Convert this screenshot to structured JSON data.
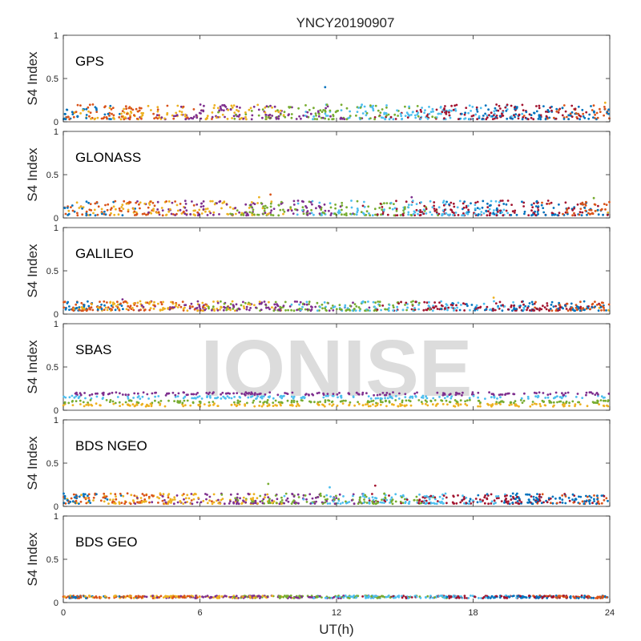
{
  "chart_data": {
    "type": "scatter",
    "title": "YNCY20190907",
    "xlabel": "UT(h)",
    "ylabel": "S4 Index",
    "xlim": [
      0,
      24
    ],
    "ylim": [
      0,
      1
    ],
    "x_ticks": [
      "0",
      "6",
      "12",
      "18",
      "24"
    ],
    "y_ticks": [
      "0",
      "0.5",
      "1"
    ],
    "grid": false,
    "watermark": "IONISE",
    "series_colors": [
      "#0072bd",
      "#d95319",
      "#edb120",
      "#7e2f8e",
      "#77ac30",
      "#4dbeee",
      "#a2142f"
    ],
    "panels": [
      {
        "label": "GPS",
        "approx_band": [
          0.03,
          0.2
        ],
        "outliers": [
          {
            "x": 11.5,
            "y": 0.4
          },
          {
            "x": 1.3,
            "y": 0.2
          },
          {
            "x": 23.8,
            "y": 0.22
          }
        ]
      },
      {
        "label": "GLONASS",
        "approx_band": [
          0.03,
          0.2
        ],
        "outliers": [
          {
            "x": 9.1,
            "y": 0.27
          },
          {
            "x": 8.6,
            "y": 0.24
          },
          {
            "x": 15.3,
            "y": 0.24
          },
          {
            "x": 23.3,
            "y": 0.23
          }
        ]
      },
      {
        "label": "GALILEO",
        "approx_band": [
          0.04,
          0.15
        ],
        "outliers": [
          {
            "x": 18.9,
            "y": 0.19
          },
          {
            "x": 2.6,
            "y": 0.17
          }
        ]
      },
      {
        "label": "SBAS",
        "approx_band": [
          0.04,
          0.22
        ],
        "outliers": []
      },
      {
        "label": "BDS NGEO",
        "approx_band": [
          0.03,
          0.15
        ],
        "outliers": [
          {
            "x": 9.0,
            "y": 0.26
          },
          {
            "x": 11.7,
            "y": 0.22
          },
          {
            "x": 13.7,
            "y": 0.24
          }
        ]
      },
      {
        "label": "BDS GEO",
        "approx_band": [
          0.05,
          0.09
        ],
        "outliers": []
      }
    ]
  }
}
